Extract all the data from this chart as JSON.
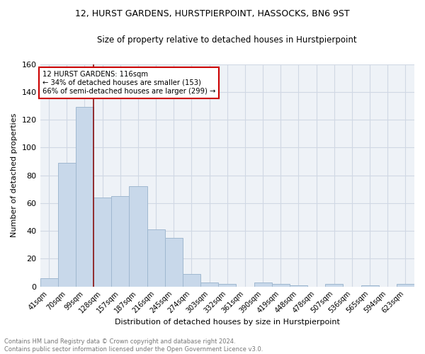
{
  "title": "12, HURST GARDENS, HURSTPIERPOINT, HASSOCKS, BN6 9ST",
  "subtitle": "Size of property relative to detached houses in Hurstpierpoint",
  "xlabel": "Distribution of detached houses by size in Hurstpierpoint",
  "ylabel": "Number of detached properties",
  "bar_color": "#c8d8ea",
  "bar_edge_color": "#a0b8d0",
  "categories": [
    "41sqm",
    "70sqm",
    "99sqm",
    "128sqm",
    "157sqm",
    "187sqm",
    "216sqm",
    "245sqm",
    "274sqm",
    "303sqm",
    "332sqm",
    "361sqm",
    "390sqm",
    "419sqm",
    "448sqm",
    "478sqm",
    "507sqm",
    "536sqm",
    "565sqm",
    "594sqm",
    "623sqm"
  ],
  "values": [
    6,
    89,
    129,
    64,
    65,
    72,
    41,
    35,
    9,
    3,
    2,
    0,
    3,
    2,
    1,
    0,
    2,
    0,
    1,
    0,
    2
  ],
  "marker_color": "#8b1010",
  "annotation_line1": "12 HURST GARDENS: 116sqm",
  "annotation_line2": "← 34% of detached houses are smaller (153)",
  "annotation_line3": "66% of semi-detached houses are larger (299) →",
  "annotation_box_color": "#ffffff",
  "annotation_box_edge_color": "#cc0000",
  "footer_line1": "Contains HM Land Registry data © Crown copyright and database right 2024.",
  "footer_line2": "Contains public sector information licensed under the Open Government Licence v3.0.",
  "ylim": [
    0,
    160
  ],
  "yticks": [
    0,
    20,
    40,
    60,
    80,
    100,
    120,
    140,
    160
  ],
  "plot_bg_color": "#eef2f7",
  "grid_color": "#d0d8e4"
}
